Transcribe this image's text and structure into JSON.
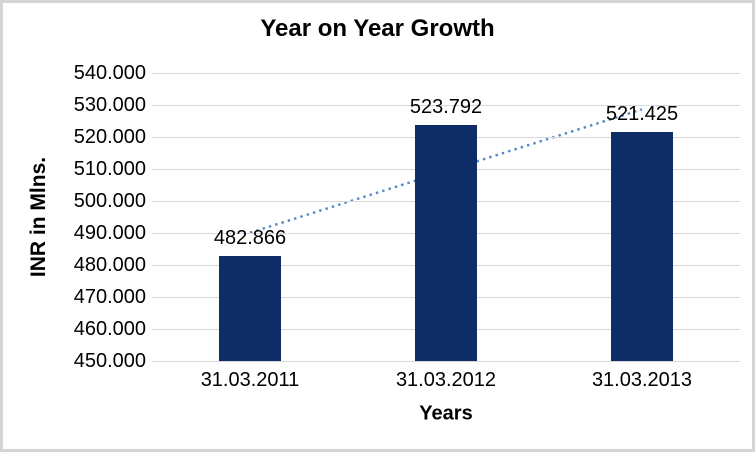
{
  "colors": {
    "bar": "#0e2c66",
    "trendline": "#4f86c8",
    "gridline": "#d9d9d9",
    "text": "#000000",
    "frame_border": "#d5d5d7",
    "background": "#ffffff"
  },
  "chart_data": {
    "type": "bar",
    "title": "Year on Year Growth",
    "xlabel": "Years",
    "ylabel": "INR in Mlns.",
    "categories": [
      "31.03.2011",
      "31.03.2012",
      "31.03.2013"
    ],
    "values": [
      482.866,
      523.792,
      521.425
    ],
    "data_labels": [
      "482.866",
      "523.792",
      "521.425"
    ],
    "ylim": [
      450,
      540
    ],
    "ytick_step": 10,
    "ytick_labels": [
      "540.000",
      "530.000",
      "520.000",
      "510.000",
      "500.000",
      "490.000",
      "480.000",
      "470.000",
      "460.000",
      "450.000"
    ],
    "grid": true,
    "legend": "none",
    "trendline": {
      "type": "linear",
      "style": "dotted"
    }
  }
}
